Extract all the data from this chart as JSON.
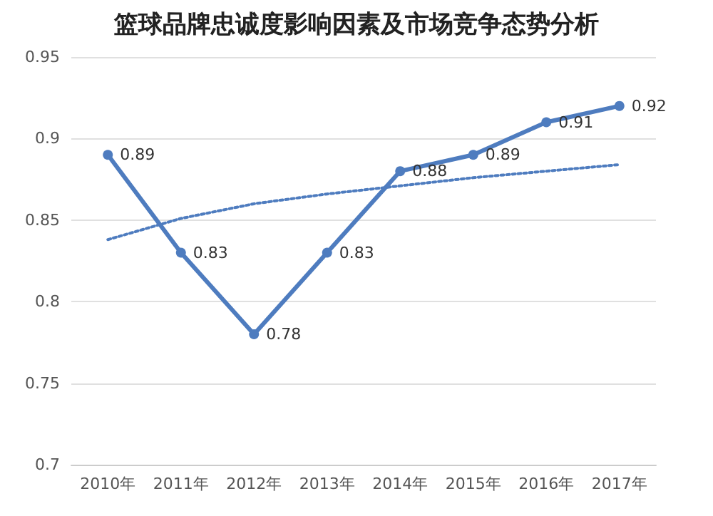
{
  "chart_data": {
    "type": "line",
    "title": "篮球品牌忠诚度影响因素及市场竞争态势分析",
    "categories": [
      "2010年",
      "2011年",
      "2012年",
      "2013年",
      "2014年",
      "2015年",
      "2016年",
      "2017年"
    ],
    "series": [
      {
        "color": "#4e7cbf",
        "values": [
          0.89,
          0.83,
          0.78,
          0.83,
          0.88,
          0.89,
          0.91,
          0.92
        ],
        "value_labels": [
          "0.89",
          "0.83",
          "0.78",
          "0.83",
          "0.88",
          "0.89",
          "0.91",
          "0.92"
        ],
        "marker": "circle",
        "line_style": "solid"
      },
      {
        "type": "line",
        "color": "#4e7cbf",
        "values": [
          0.838,
          0.851,
          0.86,
          0.866,
          0.871,
          0.876,
          0.88,
          0.884
        ],
        "marker": "none",
        "line_style": "dotted"
      }
    ],
    "ylim": [
      0.7,
      0.95
    ],
    "yticks": [
      0.7,
      0.75,
      0.8,
      0.85,
      0.9,
      0.95
    ],
    "grid": "y"
  }
}
